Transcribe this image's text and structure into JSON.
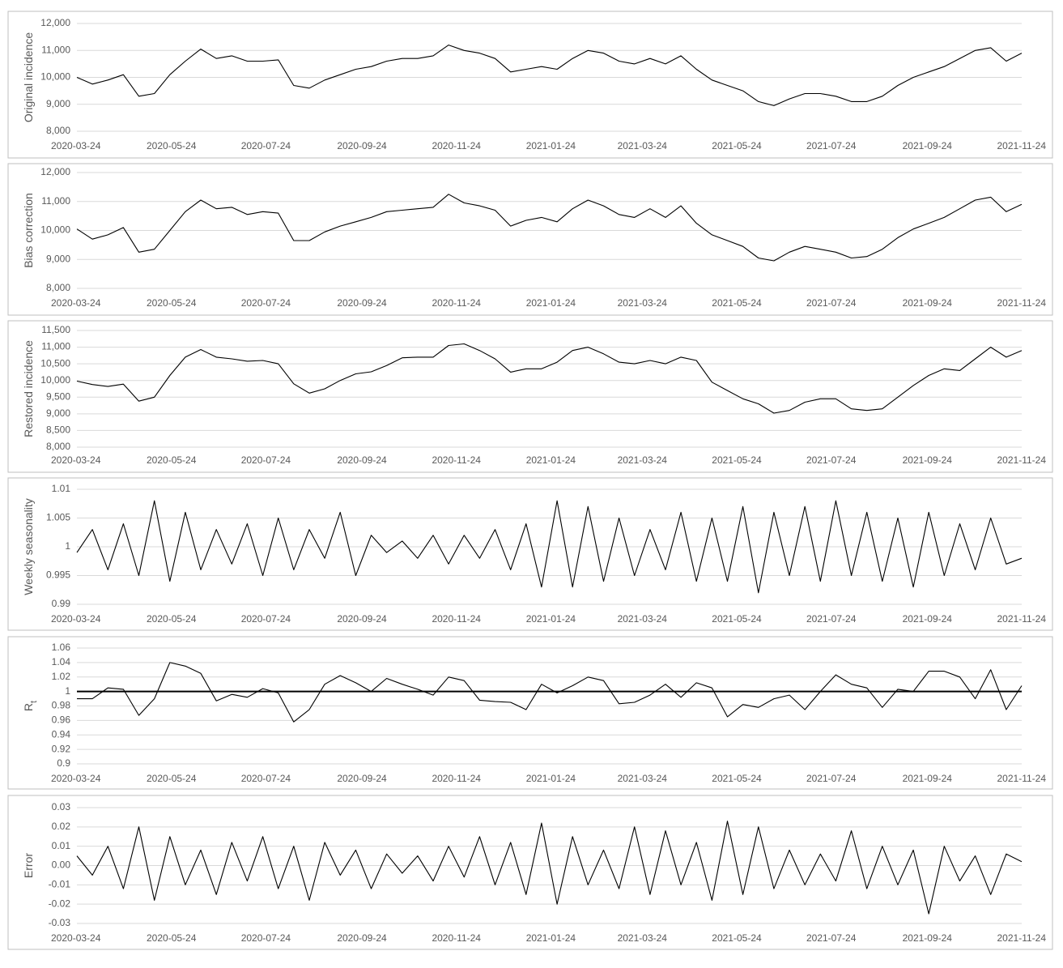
{
  "chart_data": [
    {
      "type": "line",
      "ylabel": "Original incidence",
      "x": [
        "2020-03-24",
        "2020-04-03",
        "2020-04-13",
        "2020-04-23",
        "2020-05-03",
        "2020-05-13",
        "2020-05-23",
        "2020-06-02",
        "2020-06-12",
        "2020-06-22",
        "2020-07-02",
        "2020-07-12",
        "2020-07-22",
        "2020-08-01",
        "2020-08-11",
        "2020-08-21",
        "2020-08-31",
        "2020-09-10",
        "2020-09-20",
        "2020-09-30",
        "2020-10-10",
        "2020-10-20",
        "2020-10-30",
        "2020-11-09",
        "2020-11-19",
        "2020-11-29",
        "2020-12-09",
        "2020-12-19",
        "2020-12-29",
        "2021-01-08",
        "2021-01-18",
        "2021-01-28",
        "2021-02-07",
        "2021-02-17",
        "2021-02-27",
        "2021-03-09",
        "2021-03-19",
        "2021-03-29",
        "2021-04-08",
        "2021-04-18",
        "2021-04-28",
        "2021-05-08",
        "2021-05-18",
        "2021-05-28",
        "2021-06-07",
        "2021-06-17",
        "2021-06-27",
        "2021-07-07",
        "2021-07-17",
        "2021-07-27",
        "2021-08-06",
        "2021-08-16",
        "2021-08-26",
        "2021-09-05",
        "2021-09-15",
        "2021-09-25",
        "2021-10-05",
        "2021-10-15",
        "2021-10-25",
        "2021-11-04",
        "2021-11-14",
        "2021-11-24"
      ],
      "values": [
        10000,
        9750,
        9900,
        10100,
        9300,
        9400,
        10100,
        10600,
        11050,
        10700,
        10800,
        10600,
        10600,
        10650,
        9700,
        9600,
        9900,
        10100,
        10300,
        10400,
        10600,
        10700,
        10700,
        10800,
        11200,
        11000,
        10900,
        10700,
        10200,
        10300,
        10400,
        10300,
        10700,
        11000,
        10900,
        10600,
        10500,
        10700,
        10500,
        10800,
        10300,
        9900,
        9700,
        9500,
        9100,
        8950,
        9200,
        9400,
        9400,
        9300,
        9100,
        9100,
        9300,
        9700,
        10000,
        10200,
        10400,
        10700,
        11000,
        11100,
        10600,
        10900
      ],
      "color": "#000000",
      "grid": true,
      "xlim": [
        "2020-03-24",
        "2021-11-24"
      ],
      "xticks": [
        "2020-03-24",
        "2020-05-24",
        "2020-07-24",
        "2020-09-24",
        "2020-11-24",
        "2021-01-24",
        "2021-03-24",
        "2021-05-24",
        "2021-07-24",
        "2021-09-24",
        "2021-11-24"
      ],
      "ylim": [
        8000,
        12000
      ],
      "yticks": [
        {
          "value": 8000,
          "label": "8,000"
        },
        {
          "value": 9000,
          "label": "9,000"
        },
        {
          "value": 10000,
          "label": "10,000"
        },
        {
          "value": 11000,
          "label": "11,000"
        },
        {
          "value": 12000,
          "label": "12,000"
        }
      ]
    },
    {
      "type": "line",
      "ylabel": "Bias correction",
      "x": [
        "2020-03-24",
        "2020-04-03",
        "2020-04-13",
        "2020-04-23",
        "2020-05-03",
        "2020-05-13",
        "2020-05-23",
        "2020-06-02",
        "2020-06-12",
        "2020-06-22",
        "2020-07-02",
        "2020-07-12",
        "2020-07-22",
        "2020-08-01",
        "2020-08-11",
        "2020-08-21",
        "2020-08-31",
        "2020-09-10",
        "2020-09-20",
        "2020-09-30",
        "2020-10-10",
        "2020-10-20",
        "2020-10-30",
        "2020-11-09",
        "2020-11-19",
        "2020-11-29",
        "2020-12-09",
        "2020-12-19",
        "2020-12-29",
        "2021-01-08",
        "2021-01-18",
        "2021-01-28",
        "2021-02-07",
        "2021-02-17",
        "2021-02-27",
        "2021-03-09",
        "2021-03-19",
        "2021-03-29",
        "2021-04-08",
        "2021-04-18",
        "2021-04-28",
        "2021-05-08",
        "2021-05-18",
        "2021-05-28",
        "2021-06-07",
        "2021-06-17",
        "2021-06-27",
        "2021-07-07",
        "2021-07-17",
        "2021-07-27",
        "2021-08-06",
        "2021-08-16",
        "2021-08-26",
        "2021-09-05",
        "2021-09-15",
        "2021-09-25",
        "2021-10-05",
        "2021-10-15",
        "2021-10-25",
        "2021-11-04",
        "2021-11-14",
        "2021-11-24"
      ],
      "values": [
        10050,
        9700,
        9850,
        10100,
        9250,
        9350,
        10000,
        10650,
        11050,
        10750,
        10800,
        10550,
        10650,
        10600,
        9650,
        9650,
        9950,
        10150,
        10300,
        10450,
        10650,
        10700,
        10750,
        10800,
        11250,
        10950,
        10850,
        10700,
        10150,
        10350,
        10450,
        10300,
        10750,
        11050,
        10850,
        10550,
        10450,
        10750,
        10450,
        10850,
        10250,
        9850,
        9650,
        9450,
        9050,
        8950,
        9250,
        9450,
        9350,
        9250,
        9050,
        9100,
        9350,
        9750,
        10050,
        10250,
        10450,
        10750,
        11050,
        11150,
        10650,
        10900
      ],
      "color": "#000000",
      "grid": true,
      "xlim": [
        "2020-03-24",
        "2021-11-24"
      ],
      "xticks": [
        "2020-03-24",
        "2020-05-24",
        "2020-07-24",
        "2020-09-24",
        "2020-11-24",
        "2021-01-24",
        "2021-03-24",
        "2021-05-24",
        "2021-07-24",
        "2021-09-24",
        "2021-11-24"
      ],
      "ylim": [
        8000,
        12000
      ],
      "yticks": [
        {
          "value": 8000,
          "label": "8,000"
        },
        {
          "value": 9000,
          "label": "9,000"
        },
        {
          "value": 10000,
          "label": "10,000"
        },
        {
          "value": 11000,
          "label": "11,000"
        },
        {
          "value": 12000,
          "label": "12,000"
        }
      ]
    },
    {
      "type": "line",
      "ylabel": "Restored incidence",
      "x": [
        "2020-03-24",
        "2020-04-03",
        "2020-04-13",
        "2020-04-23",
        "2020-05-03",
        "2020-05-13",
        "2020-05-23",
        "2020-06-02",
        "2020-06-12",
        "2020-06-22",
        "2020-07-02",
        "2020-07-12",
        "2020-07-22",
        "2020-08-01",
        "2020-08-11",
        "2020-08-21",
        "2020-08-31",
        "2020-09-10",
        "2020-09-20",
        "2020-09-30",
        "2020-10-10",
        "2020-10-20",
        "2020-10-30",
        "2020-11-09",
        "2020-11-19",
        "2020-11-29",
        "2020-12-09",
        "2020-12-19",
        "2020-12-29",
        "2021-01-08",
        "2021-01-18",
        "2021-01-28",
        "2021-02-07",
        "2021-02-17",
        "2021-02-27",
        "2021-03-09",
        "2021-03-19",
        "2021-03-29",
        "2021-04-08",
        "2021-04-18",
        "2021-04-28",
        "2021-05-08",
        "2021-05-18",
        "2021-05-28",
        "2021-06-07",
        "2021-06-17",
        "2021-06-27",
        "2021-07-07",
        "2021-07-17",
        "2021-07-27",
        "2021-08-06",
        "2021-08-16",
        "2021-08-26",
        "2021-09-05",
        "2021-09-15",
        "2021-09-25",
        "2021-10-05",
        "2021-10-15",
        "2021-10-25",
        "2021-11-04",
        "2021-11-14",
        "2021-11-24"
      ],
      "values": [
        9980,
        9880,
        9820,
        9890,
        9380,
        9500,
        10150,
        10700,
        10930,
        10700,
        10650,
        10580,
        10600,
        10500,
        9900,
        9620,
        9750,
        10000,
        10200,
        10260,
        10450,
        10680,
        10700,
        10700,
        11050,
        11100,
        10900,
        10650,
        10250,
        10350,
        10350,
        10550,
        10900,
        11000,
        10800,
        10550,
        10500,
        10600,
        10500,
        10700,
        10600,
        9950,
        9700,
        9450,
        9300,
        9020,
        9100,
        9350,
        9450,
        9450,
        9150,
        9100,
        9150,
        9500,
        9850,
        10150,
        10350,
        10300,
        10650,
        11000,
        10700,
        10900
      ],
      "color": "#000000",
      "grid": true,
      "xlim": [
        "2020-03-24",
        "2021-11-24"
      ],
      "xticks": [
        "2020-03-24",
        "2020-05-24",
        "2020-07-24",
        "2020-09-24",
        "2020-11-24",
        "2021-01-24",
        "2021-03-24",
        "2021-05-24",
        "2021-07-24",
        "2021-09-24",
        "2021-11-24"
      ],
      "ylim": [
        8000,
        11500
      ],
      "yticks": [
        {
          "value": 8000,
          "label": "8,000"
        },
        {
          "value": 8500,
          "label": "8,500"
        },
        {
          "value": 9000,
          "label": "9,000"
        },
        {
          "value": 9500,
          "label": "9,500"
        },
        {
          "value": 10000,
          "label": "10,000"
        },
        {
          "value": 10500,
          "label": "10,500"
        },
        {
          "value": 11000,
          "label": "11,000"
        },
        {
          "value": 11500,
          "label": "11,500"
        }
      ]
    },
    {
      "type": "line",
      "ylabel": "Weekly seasonality",
      "x": [
        "2020-03-24",
        "2020-04-03",
        "2020-04-13",
        "2020-04-23",
        "2020-05-03",
        "2020-05-13",
        "2020-05-23",
        "2020-06-02",
        "2020-06-12",
        "2020-06-22",
        "2020-07-02",
        "2020-07-12",
        "2020-07-22",
        "2020-08-01",
        "2020-08-11",
        "2020-08-21",
        "2020-08-31",
        "2020-09-10",
        "2020-09-20",
        "2020-09-30",
        "2020-10-10",
        "2020-10-20",
        "2020-10-30",
        "2020-11-09",
        "2020-11-19",
        "2020-11-29",
        "2020-12-09",
        "2020-12-19",
        "2020-12-29",
        "2021-01-08",
        "2021-01-18",
        "2021-01-28",
        "2021-02-07",
        "2021-02-17",
        "2021-02-27",
        "2021-03-09",
        "2021-03-19",
        "2021-03-29",
        "2021-04-08",
        "2021-04-18",
        "2021-04-28",
        "2021-05-08",
        "2021-05-18",
        "2021-05-28",
        "2021-06-07",
        "2021-06-17",
        "2021-06-27",
        "2021-07-07",
        "2021-07-17",
        "2021-07-27",
        "2021-08-06",
        "2021-08-16",
        "2021-08-26",
        "2021-09-05",
        "2021-09-15",
        "2021-09-25",
        "2021-10-05",
        "2021-10-15",
        "2021-10-25",
        "2021-11-04",
        "2021-11-14",
        "2021-11-24"
      ],
      "values": [
        0.999,
        1.003,
        0.996,
        1.004,
        0.995,
        1.008,
        0.994,
        1.006,
        0.996,
        1.003,
        0.997,
        1.004,
        0.995,
        1.005,
        0.996,
        1.003,
        0.998,
        1.006,
        0.995,
        1.002,
        0.999,
        1.001,
        0.998,
        1.002,
        0.997,
        1.002,
        0.998,
        1.003,
        0.996,
        1.004,
        0.993,
        1.008,
        0.993,
        1.007,
        0.994,
        1.005,
        0.995,
        1.003,
        0.996,
        1.006,
        0.994,
        1.005,
        0.994,
        1.007,
        0.992,
        1.006,
        0.995,
        1.007,
        0.994,
        1.008,
        0.995,
        1.006,
        0.994,
        1.005,
        0.993,
        1.006,
        0.995,
        1.004,
        0.996,
        1.005,
        0.997,
        0.998
      ],
      "color": "#000000",
      "grid": true,
      "xlim": [
        "2020-03-24",
        "2021-11-24"
      ],
      "xticks": [
        "2020-03-24",
        "2020-05-24",
        "2020-07-24",
        "2020-09-24",
        "2020-11-24",
        "2021-01-24",
        "2021-03-24",
        "2021-05-24",
        "2021-07-24",
        "2021-09-24",
        "2021-11-24"
      ],
      "ylim": [
        0.99,
        1.01
      ],
      "yticks": [
        0.99,
        0.995,
        1,
        1.005,
        1.01
      ]
    },
    {
      "type": "line",
      "ylabel": "R",
      "ylabel_sub": "t",
      "x": [
        "2020-03-24",
        "2020-04-03",
        "2020-04-13",
        "2020-04-23",
        "2020-05-03",
        "2020-05-13",
        "2020-05-23",
        "2020-06-02",
        "2020-06-12",
        "2020-06-22",
        "2020-07-02",
        "2020-07-12",
        "2020-07-22",
        "2020-08-01",
        "2020-08-11",
        "2020-08-21",
        "2020-08-31",
        "2020-09-10",
        "2020-09-20",
        "2020-09-30",
        "2020-10-10",
        "2020-10-20",
        "2020-10-30",
        "2020-11-09",
        "2020-11-19",
        "2020-11-29",
        "2020-12-09",
        "2020-12-19",
        "2020-12-29",
        "2021-01-08",
        "2021-01-18",
        "2021-01-28",
        "2021-02-07",
        "2021-02-17",
        "2021-02-27",
        "2021-03-09",
        "2021-03-19",
        "2021-03-29",
        "2021-04-08",
        "2021-04-18",
        "2021-04-28",
        "2021-05-08",
        "2021-05-18",
        "2021-05-28",
        "2021-06-07",
        "2021-06-17",
        "2021-06-27",
        "2021-07-07",
        "2021-07-17",
        "2021-07-27",
        "2021-08-06",
        "2021-08-16",
        "2021-08-26",
        "2021-09-05",
        "2021-09-15",
        "2021-09-25",
        "2021-10-05",
        "2021-10-15",
        "2021-10-25",
        "2021-11-04",
        "2021-11-14",
        "2021-11-24"
      ],
      "values": [
        0.99,
        0.99,
        1.005,
        1.003,
        0.967,
        0.99,
        1.04,
        1.035,
        1.025,
        0.987,
        0.996,
        0.992,
        1.004,
        0.998,
        0.958,
        0.975,
        1.01,
        1.022,
        1.012,
        1.0,
        1.018,
        1.01,
        1.003,
        0.995,
        1.02,
        1.015,
        0.988,
        0.986,
        0.985,
        0.975,
        1.01,
        0.998,
        1.008,
        1.02,
        1.015,
        0.983,
        0.985,
        0.995,
        1.01,
        0.992,
        1.012,
        1.005,
        0.965,
        0.982,
        0.978,
        0.99,
        0.995,
        0.975,
        1.0,
        1.023,
        1.01,
        1.005,
        0.978,
        1.003,
        1.0,
        1.028,
        1.028,
        1.02,
        0.99,
        1.03,
        0.975,
        1.008
      ],
      "color": "#000000",
      "grid": true,
      "hline": 1,
      "xlim": [
        "2020-03-24",
        "2021-11-24"
      ],
      "xticks": [
        "2020-03-24",
        "2020-05-24",
        "2020-07-24",
        "2020-09-24",
        "2020-11-24",
        "2021-01-24",
        "2021-03-24",
        "2021-05-24",
        "2021-07-24",
        "2021-09-24",
        "2021-11-24"
      ],
      "ylim": [
        0.9,
        1.06
      ],
      "yticks": [
        0.9,
        0.92,
        0.94,
        0.96,
        0.98,
        1,
        1.02,
        1.04,
        1.06
      ]
    },
    {
      "type": "line",
      "ylabel": "Error",
      "x": [
        "2020-03-24",
        "2020-04-03",
        "2020-04-13",
        "2020-04-23",
        "2020-05-03",
        "2020-05-13",
        "2020-05-23",
        "2020-06-02",
        "2020-06-12",
        "2020-06-22",
        "2020-07-02",
        "2020-07-12",
        "2020-07-22",
        "2020-08-01",
        "2020-08-11",
        "2020-08-21",
        "2020-08-31",
        "2020-09-10",
        "2020-09-20",
        "2020-09-30",
        "2020-10-10",
        "2020-10-20",
        "2020-10-30",
        "2020-11-09",
        "2020-11-19",
        "2020-11-29",
        "2020-12-09",
        "2020-12-19",
        "2020-12-29",
        "2021-01-08",
        "2021-01-18",
        "2021-01-28",
        "2021-02-07",
        "2021-02-17",
        "2021-02-27",
        "2021-03-09",
        "2021-03-19",
        "2021-03-29",
        "2021-04-08",
        "2021-04-18",
        "2021-04-28",
        "2021-05-08",
        "2021-05-18",
        "2021-05-28",
        "2021-06-07",
        "2021-06-17",
        "2021-06-27",
        "2021-07-07",
        "2021-07-17",
        "2021-07-27",
        "2021-08-06",
        "2021-08-16",
        "2021-08-26",
        "2021-09-05",
        "2021-09-15",
        "2021-09-25",
        "2021-10-05",
        "2021-10-15",
        "2021-10-25",
        "2021-11-04",
        "2021-11-14",
        "2021-11-24"
      ],
      "values": [
        0.005,
        -0.005,
        0.01,
        -0.012,
        0.02,
        -0.018,
        0.015,
        -0.01,
        0.008,
        -0.015,
        0.012,
        -0.008,
        0.015,
        -0.012,
        0.01,
        -0.018,
        0.012,
        -0.005,
        0.008,
        -0.012,
        0.006,
        -0.004,
        0.005,
        -0.008,
        0.01,
        -0.006,
        0.015,
        -0.01,
        0.012,
        -0.015,
        0.022,
        -0.02,
        0.015,
        -0.01,
        0.008,
        -0.012,
        0.02,
        -0.015,
        0.018,
        -0.01,
        0.012,
        -0.018,
        0.023,
        -0.015,
        0.02,
        -0.012,
        0.008,
        -0.01,
        0.006,
        -0.008,
        0.018,
        -0.012,
        0.01,
        -0.01,
        0.008,
        -0.025,
        0.01,
        -0.008,
        0.005,
        -0.015,
        0.006,
        0.002
      ],
      "color": "#000000",
      "grid": true,
      "xlim": [
        "2020-03-24",
        "2021-11-24"
      ],
      "xticks": [
        "2020-03-24",
        "2020-05-24",
        "2020-07-24",
        "2020-09-24",
        "2020-11-24",
        "2021-01-24",
        "2021-03-24",
        "2021-05-24",
        "2021-07-24",
        "2021-09-24",
        "2021-11-24"
      ],
      "ylim": [
        -0.03,
        0.03
      ],
      "yticks": [
        {
          "value": -0.03,
          "label": "-0.03"
        },
        {
          "value": -0.02,
          "label": "-0.02"
        },
        {
          "value": -0.01,
          "label": "-0.01"
        },
        {
          "value": 0,
          "label": "0.00"
        },
        {
          "value": 0.01,
          "label": "0.01"
        },
        {
          "value": 0.02,
          "label": "0.02"
        },
        {
          "value": 0.03,
          "label": "0.03"
        }
      ]
    }
  ]
}
